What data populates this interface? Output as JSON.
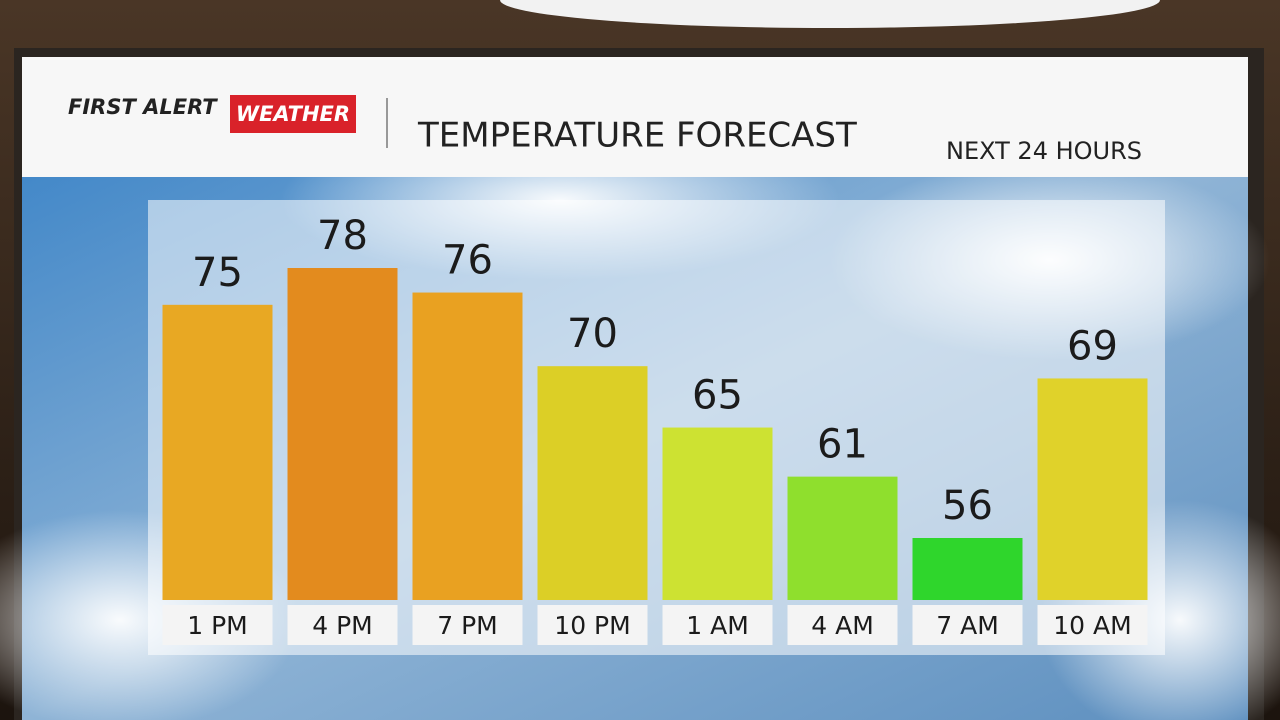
{
  "header": {
    "brand": "FIRST ALERT",
    "brand_highlight": "WEATHER"
  },
  "chart_data": {
    "type": "bar",
    "title": "TEMPERATURE FORECAST",
    "subtitle": "NEXT 24 HOURS",
    "categories": [
      "1 PM",
      "4 PM",
      "7 PM",
      "10 PM",
      "1 AM",
      "4 AM",
      "7 AM",
      "10 AM"
    ],
    "values": [
      75,
      78,
      76,
      70,
      65,
      61,
      56,
      69
    ],
    "colors": [
      "#e8a823",
      "#e38b1e",
      "#e9a121",
      "#dccf26",
      "#cde232",
      "#8fdf2d",
      "#2fd62c",
      "#e0d22a"
    ]
  }
}
